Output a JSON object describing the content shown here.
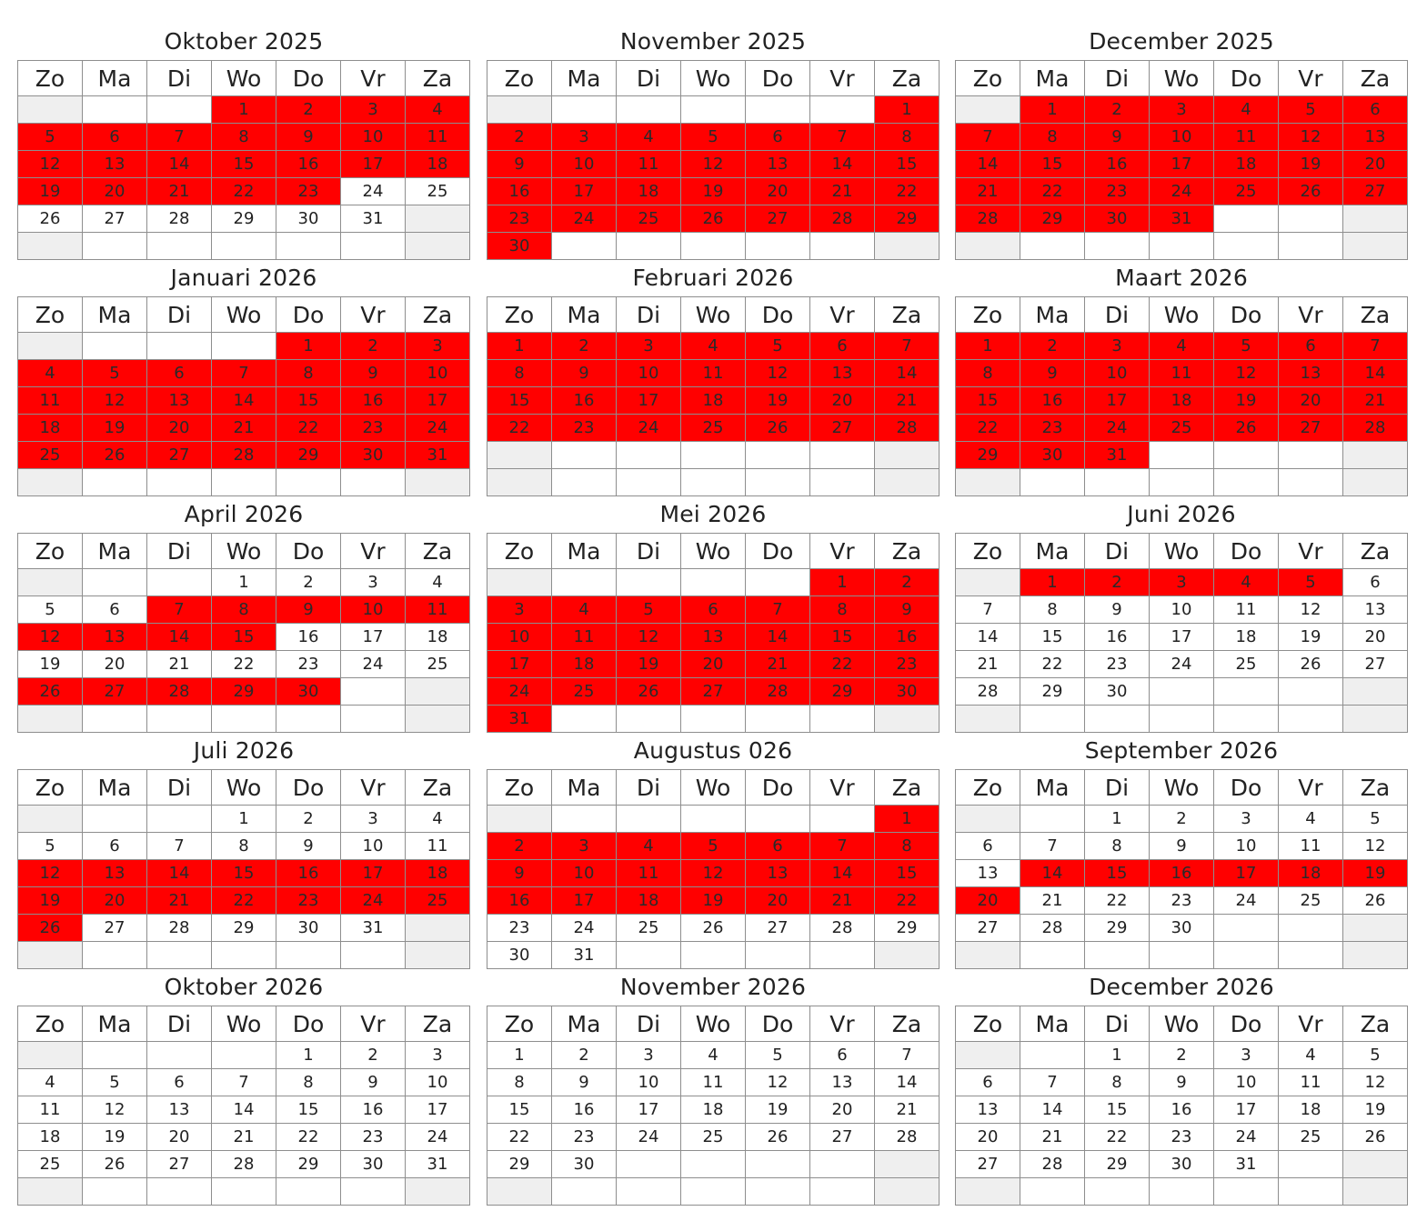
{
  "weekday_headers": [
    "Zo",
    "Ma",
    "Di",
    "Wo",
    "Do",
    "Vr",
    "Za"
  ],
  "colors": {
    "booked": "#ff0000",
    "weekend_empty": "#efefef",
    "border": "#8e8e8e",
    "background": "#ffffff"
  },
  "legend": {
    "booked": "red cell = booked / unavailable day"
  },
  "months": [
    {
      "title": "Oktober 2025",
      "start_weekday": 3,
      "days": 31,
      "booked": [
        1,
        2,
        3,
        4,
        5,
        6,
        7,
        8,
        9,
        10,
        11,
        12,
        13,
        14,
        15,
        16,
        17,
        18,
        19,
        20,
        21,
        22,
        23
      ]
    },
    {
      "title": "November 2025",
      "start_weekday": 6,
      "days": 30,
      "booked": [
        1,
        2,
        3,
        4,
        5,
        6,
        7,
        8,
        9,
        10,
        11,
        12,
        13,
        14,
        15,
        16,
        17,
        18,
        19,
        20,
        21,
        22,
        23,
        24,
        25,
        26,
        27,
        28,
        29,
        30
      ]
    },
    {
      "title": "December 2025",
      "start_weekday": 1,
      "days": 31,
      "booked": [
        1,
        2,
        3,
        4,
        5,
        6,
        7,
        8,
        9,
        10,
        11,
        12,
        13,
        14,
        15,
        16,
        17,
        18,
        19,
        20,
        21,
        22,
        23,
        24,
        25,
        26,
        27,
        28,
        29,
        30,
        31
      ]
    },
    {
      "title": "Januari 2026",
      "start_weekday": 4,
      "days": 31,
      "booked": [
        1,
        2,
        3,
        4,
        5,
        6,
        7,
        8,
        9,
        10,
        11,
        12,
        13,
        14,
        15,
        16,
        17,
        18,
        19,
        20,
        21,
        22,
        23,
        24,
        25,
        26,
        27,
        28,
        29,
        30,
        31
      ]
    },
    {
      "title": "Februari 2026",
      "start_weekday": 0,
      "days": 28,
      "booked": [
        1,
        2,
        3,
        4,
        5,
        6,
        7,
        8,
        9,
        10,
        11,
        12,
        13,
        14,
        15,
        16,
        17,
        18,
        19,
        20,
        21,
        22,
        23,
        24,
        25,
        26,
        27,
        28
      ]
    },
    {
      "title": "Maart 2026",
      "start_weekday": 0,
      "days": 31,
      "booked": [
        1,
        2,
        3,
        4,
        5,
        6,
        7,
        8,
        9,
        10,
        11,
        12,
        13,
        14,
        15,
        16,
        17,
        18,
        19,
        20,
        21,
        22,
        23,
        24,
        25,
        26,
        27,
        28,
        29,
        30,
        31
      ]
    },
    {
      "title": "April 2026",
      "start_weekday": 3,
      "days": 30,
      "booked": [
        7,
        8,
        9,
        10,
        11,
        12,
        13,
        14,
        15,
        26,
        27,
        28,
        29,
        30
      ]
    },
    {
      "title": "Mei 2026",
      "start_weekday": 5,
      "days": 31,
      "booked": [
        1,
        2,
        3,
        4,
        5,
        6,
        7,
        8,
        9,
        10,
        11,
        12,
        13,
        14,
        15,
        16,
        17,
        18,
        19,
        20,
        21,
        22,
        23,
        24,
        25,
        26,
        27,
        28,
        29,
        30,
        31
      ]
    },
    {
      "title": "Juni 2026",
      "start_weekday": 1,
      "days": 30,
      "booked": [
        1,
        2,
        3,
        4,
        5
      ]
    },
    {
      "title": "Juli 2026",
      "start_weekday": 3,
      "days": 31,
      "booked": [
        12,
        13,
        14,
        15,
        16,
        17,
        18,
        19,
        20,
        21,
        22,
        23,
        24,
        25,
        26
      ]
    },
    {
      "title": "Augustus 026",
      "start_weekday": 6,
      "days": 31,
      "booked": [
        1,
        2,
        3,
        4,
        5,
        6,
        7,
        8,
        9,
        10,
        11,
        12,
        13,
        14,
        15,
        16,
        17,
        18,
        19,
        20,
        21,
        22
      ]
    },
    {
      "title": "September 2026",
      "start_weekday": 2,
      "days": 30,
      "booked": [
        14,
        15,
        16,
        17,
        18,
        19,
        20
      ]
    },
    {
      "title": "Oktober 2026",
      "start_weekday": 4,
      "days": 31,
      "booked": []
    },
    {
      "title": "November 2026",
      "start_weekday": 0,
      "days": 30,
      "booked": []
    },
    {
      "title": "December 2026",
      "start_weekday": 2,
      "days": 31,
      "booked": []
    }
  ]
}
